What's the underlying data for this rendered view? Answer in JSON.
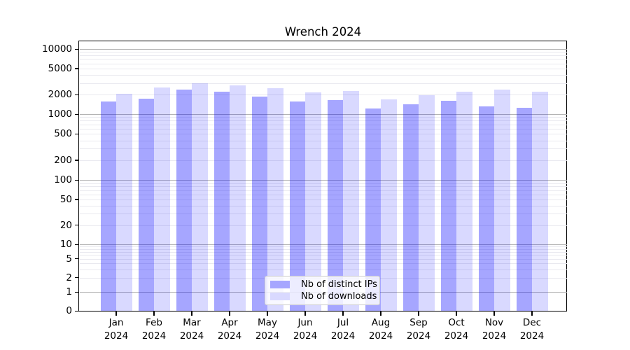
{
  "title": "Wrench 2024",
  "chart_data": {
    "type": "bar",
    "title": "Wrench 2024",
    "xlabel": "",
    "ylabel": "",
    "yscale": "symlog",
    "ylim": [
      0,
      13000
    ],
    "grid": true,
    "legend_position": "lower center",
    "categories": [
      "Jan 2024",
      "Feb 2024",
      "Mar 2024",
      "Apr 2024",
      "May 2024",
      "Jun 2024",
      "Jul 2024",
      "Aug 2024",
      "Sep 2024",
      "Oct 2024",
      "Nov 2024",
      "Dec 2024"
    ],
    "y_tick_labels": [
      "10000",
      "5000",
      "2000",
      "1000",
      "500",
      "200",
      "100",
      "50",
      "20",
      "10",
      "5",
      "2",
      "1",
      "0"
    ],
    "series": [
      {
        "name": "Nb of distinct IPs",
        "color": "rgba(0,0,255,0.35)",
        "legend_color": "#a6a6ff",
        "values": [
          1560,
          1740,
          2380,
          2190,
          1840,
          1560,
          1630,
          1220,
          1400,
          1590,
          1320,
          1240
        ]
      },
      {
        "name": "Nb of downloads",
        "color": "rgba(0,0,255,0.15)",
        "legend_color": "#d9d9ff",
        "values": [
          2040,
          2550,
          2970,
          2780,
          2500,
          2150,
          2250,
          1670,
          1970,
          2210,
          2360,
          2230
        ]
      }
    ]
  }
}
